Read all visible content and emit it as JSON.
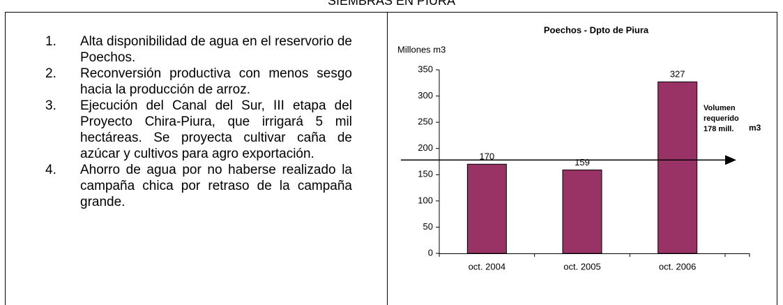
{
  "header": {
    "title": "SIEMBRAS EN PIURA"
  },
  "list": [
    {
      "number": "1.",
      "text": "Alta disponibilidad de agua en el reservorio de Poechos."
    },
    {
      "number": "2.",
      "text": "Reconversión productiva con menos sesgo hacia la producción de arroz."
    },
    {
      "number": "3.",
      "text": "Ejecución del Canal del Sur, III etapa del Proyecto Chira-Piura, que irrigará 5 mil hectáreas. Se proyecta cultivar caña de azúcar y cultivos para agro exportación."
    },
    {
      "number": "4.",
      "text": "Ahorro de agua por no haberse realizado la campaña chica por retraso de la campaña grande."
    }
  ],
  "chart_data": {
    "type": "bar",
    "title": "Poechos - Dpto de Piura",
    "y_label": "Millones m3",
    "categories": [
      "oct. 2004",
      "oct. 2005",
      "oct. 2006"
    ],
    "values": [
      170,
      159,
      327
    ],
    "color": "#993366",
    "ylim": [
      0,
      350
    ],
    "yticks": [
      0,
      50,
      100,
      150,
      200,
      250,
      300,
      350
    ],
    "reference_line": {
      "value": 178,
      "label_lines": [
        "Volumen",
        "requerido",
        "178 mill."
      ],
      "unit": "m3"
    }
  }
}
